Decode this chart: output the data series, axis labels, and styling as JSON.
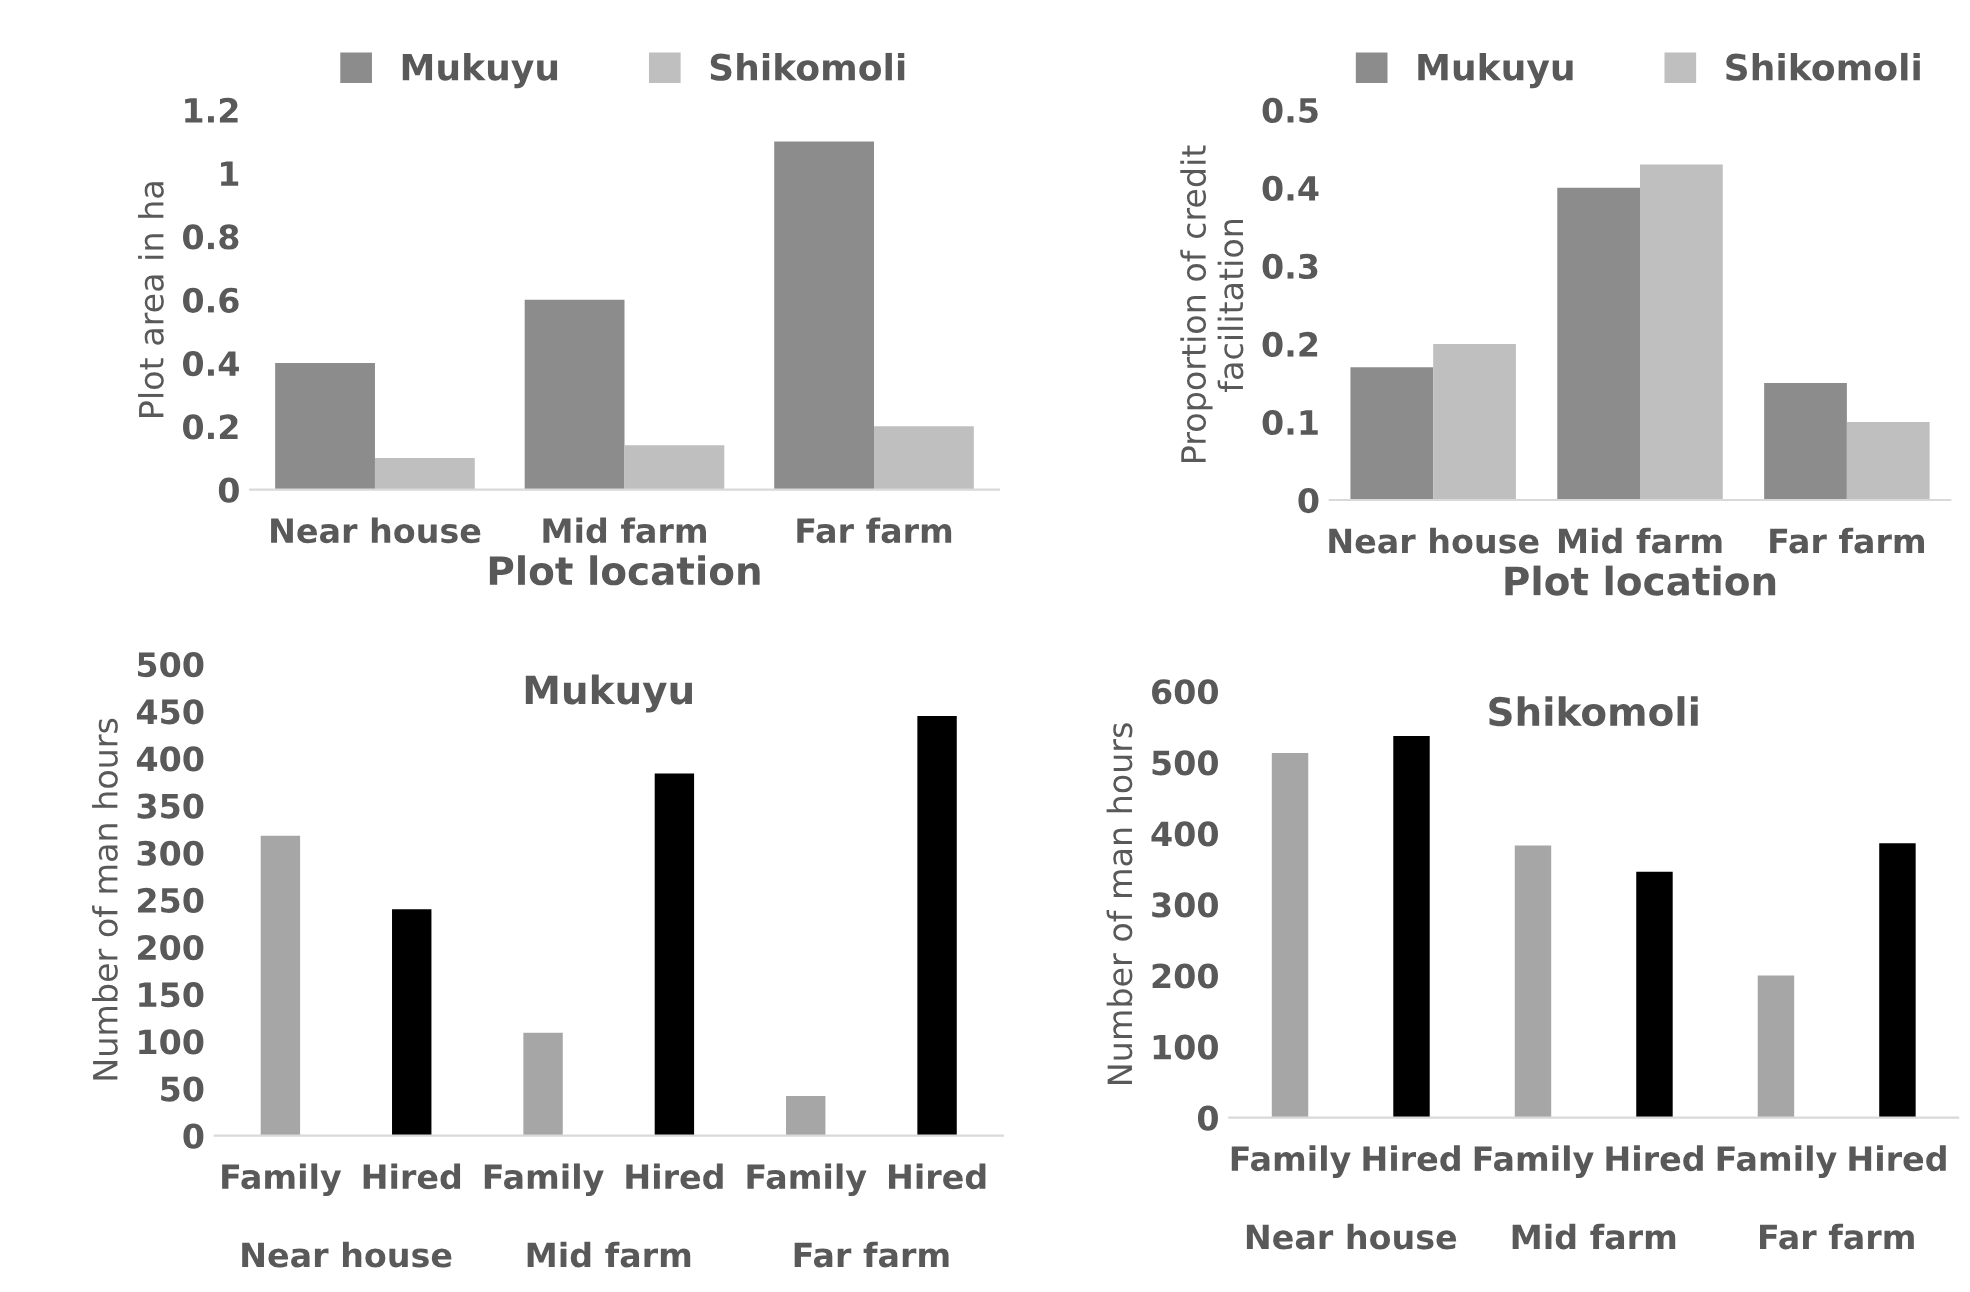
{
  "chart_data": [
    {
      "type": "bar",
      "categories": [
        "Near house",
        "Mid farm",
        "Far farm"
      ],
      "xlabel": "Plot location",
      "ylabel": "Plot area in ha",
      "ylim": [
        0,
        1.2
      ],
      "yticks": [
        0,
        0.2,
        0.4,
        0.6,
        0.8,
        1,
        1.2
      ],
      "legend": "top",
      "grid": false,
      "series": [
        {
          "name": "Mukuyu",
          "color": "#8c8c8c",
          "values": [
            0.4,
            0.6,
            1.1
          ]
        },
        {
          "name": "Shikomoli",
          "color": "#bfbfbf",
          "values": [
            0.1,
            0.14,
            0.2
          ]
        }
      ]
    },
    {
      "type": "bar",
      "categories": [
        "Near house",
        "Mid farm",
        "Far farm"
      ],
      "xlabel": "Plot location",
      "ylabel": "Proportion of credit\nfacilitation",
      "ylim": [
        0,
        0.5
      ],
      "yticks": [
        0,
        0.1,
        0.2,
        0.3,
        0.4,
        0.5
      ],
      "legend": "top",
      "grid": false,
      "series": [
        {
          "name": "Mukuyu",
          "color": "#8c8c8c",
          "values": [
            0.17,
            0.4,
            0.15
          ]
        },
        {
          "name": "Shikomoli",
          "color": "#bfbfbf",
          "values": [
            0.2,
            0.43,
            0.1
          ]
        }
      ]
    },
    {
      "type": "bar",
      "title": "Mukuyu",
      "categories": [
        "Family",
        "Hired",
        "Family",
        "Hired",
        "Family",
        "Hired"
      ],
      "annotations": [
        "Near house",
        "Mid farm",
        "Far farm"
      ],
      "ylabel": "Number of man hours",
      "ylim": [
        0,
        500
      ],
      "yticks": [
        0,
        50,
        100,
        150,
        200,
        250,
        300,
        350,
        400,
        450,
        500
      ],
      "grid": false,
      "values": [
        318,
        240,
        109,
        384,
        42,
        445
      ],
      "colors": [
        "#a6a6a6",
        "#000000",
        "#a6a6a6",
        "#000000",
        "#a6a6a6",
        "#000000"
      ]
    },
    {
      "type": "bar",
      "title": "Shikomoli",
      "categories": [
        "Family",
        "Hired",
        "Family",
        "Hired",
        "Family",
        "Hired"
      ],
      "annotations": [
        "Near house",
        "Mid farm",
        "Far farm"
      ],
      "ylabel": "Number of man hours",
      "ylim": [
        0,
        600
      ],
      "yticks": [
        0,
        100,
        200,
        300,
        400,
        500,
        600
      ],
      "grid": false,
      "values": [
        513,
        537,
        383,
        346,
        200,
        386
      ],
      "colors": [
        "#a6a6a6",
        "#000000",
        "#a6a6a6",
        "#000000",
        "#a6a6a6",
        "#000000"
      ]
    }
  ]
}
